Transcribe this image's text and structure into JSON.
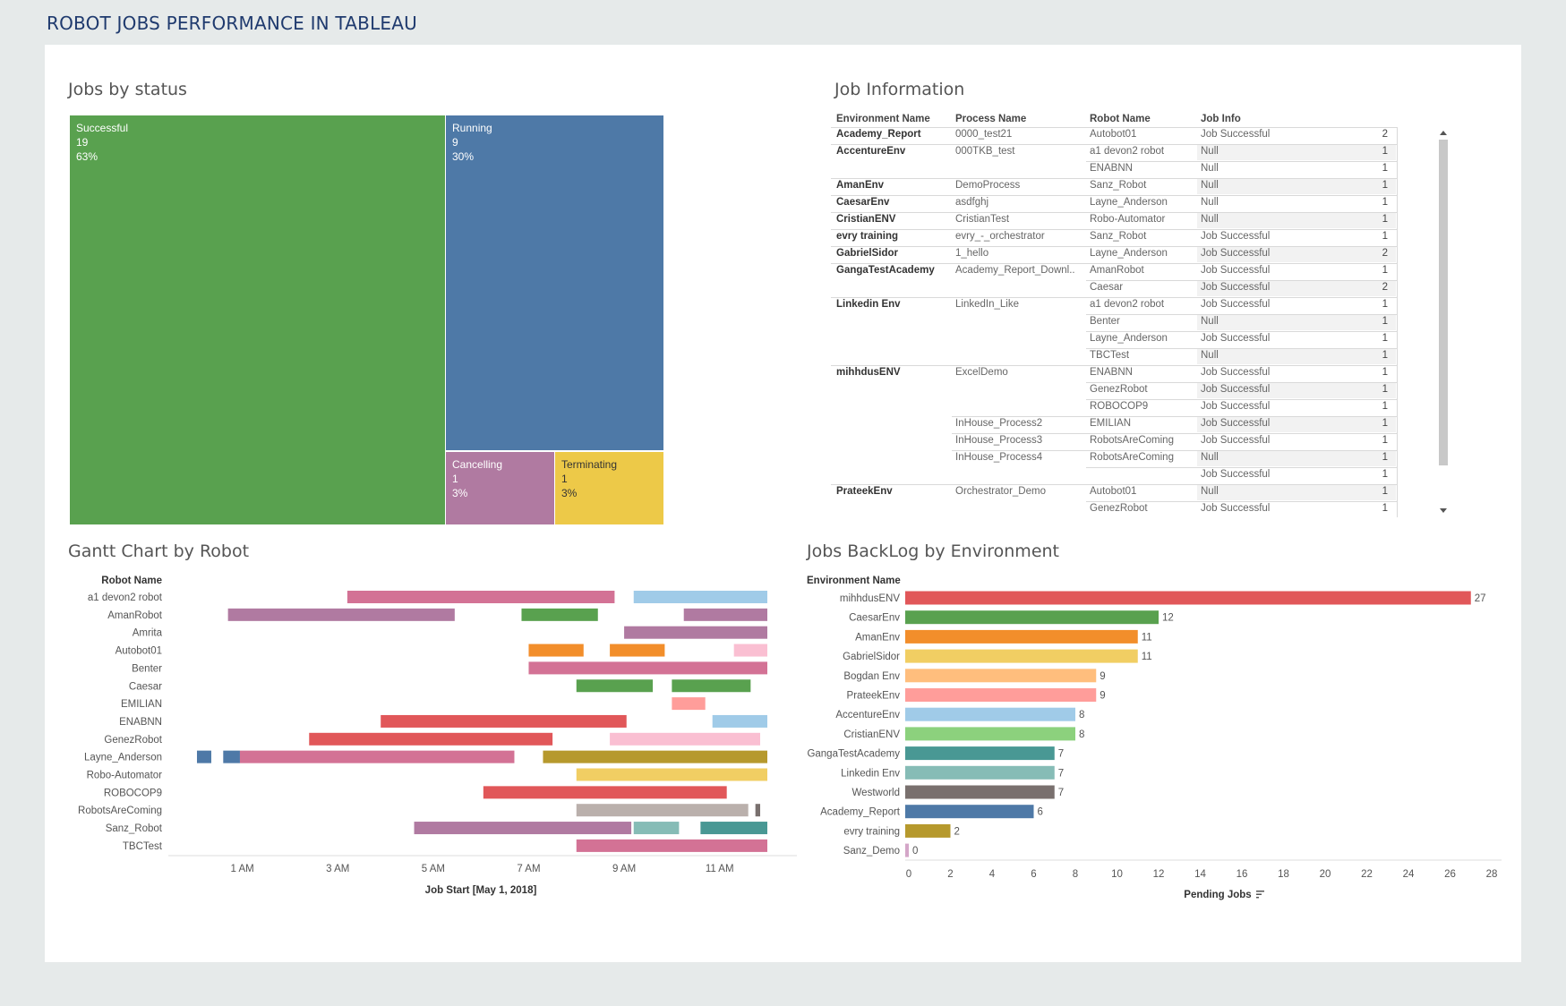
{
  "dashboard_title": "ROBOT JOBS PERFORMANCE IN TABLEAU",
  "sheets": {
    "treemap_title": "Jobs by status",
    "table_title": "Job Information",
    "gantt_title": "Gantt Chart by Robot",
    "backlog_title": "Jobs BackLog by Environment"
  },
  "treemap": [
    {
      "label": "Successful",
      "count": "19",
      "pct": "63%",
      "color": "#59a14f"
    },
    {
      "label": "Running",
      "count": "9",
      "pct": "30%",
      "color": "#4e79a7"
    },
    {
      "label": "Cancelling",
      "count": "1",
      "pct": "3%",
      "color": "#b07aa1"
    },
    {
      "label": "Terminating",
      "count": "1",
      "pct": "3%",
      "color": "#edc948"
    }
  ],
  "job_table": {
    "headers": [
      "Environment Name",
      "Process Name",
      "Robot Name",
      "Job Info"
    ],
    "rows": [
      {
        "env": "Academy_Report",
        "proc": "0000_test21",
        "robot": "Autobot01",
        "info": "Job Successful",
        "n": "2"
      },
      {
        "env": "AccentureEnv",
        "proc": "000TKB_test",
        "robot": "a1 devon2 robot",
        "info": "Null",
        "n": "1"
      },
      {
        "env": "",
        "proc": "",
        "robot": "ENABNN",
        "info": "Null",
        "n": "1"
      },
      {
        "env": "AmanEnv",
        "proc": "DemoProcess",
        "robot": "Sanz_Robot",
        "info": "Null",
        "n": "1"
      },
      {
        "env": "CaesarEnv",
        "proc": "asdfghj",
        "robot": "Layne_Anderson",
        "info": "Null",
        "n": "1"
      },
      {
        "env": "CristianENV",
        "proc": "CristianTest",
        "robot": "Robo-Automator",
        "info": "Null",
        "n": "1"
      },
      {
        "env": "evry training",
        "proc": "evry_-_orchestrator",
        "robot": "Sanz_Robot",
        "info": "Job Successful",
        "n": "1"
      },
      {
        "env": "GabrielSidor",
        "proc": "1_hello",
        "robot": "Layne_Anderson",
        "info": "Job Successful",
        "n": "2"
      },
      {
        "env": "GangaTestAcademy",
        "proc": "Academy_Report_Downl..",
        "robot": "AmanRobot",
        "info": "Job Successful",
        "n": "1"
      },
      {
        "env": "",
        "proc": "",
        "robot": "Caesar",
        "info": "Job Successful",
        "n": "2"
      },
      {
        "env": "Linkedin Env",
        "proc": "LinkedIn_Like",
        "robot": "a1 devon2 robot",
        "info": "Job Successful",
        "n": "1"
      },
      {
        "env": "",
        "proc": "",
        "robot": "Benter",
        "info": "Null",
        "n": "1"
      },
      {
        "env": "",
        "proc": "",
        "robot": "Layne_Anderson",
        "info": "Job Successful",
        "n": "1"
      },
      {
        "env": "",
        "proc": "",
        "robot": "TBCTest",
        "info": "Null",
        "n": "1"
      },
      {
        "env": "mihhdusENV",
        "proc": "ExcelDemo",
        "robot": "ENABNN",
        "info": "Job Successful",
        "n": "1"
      },
      {
        "env": "",
        "proc": "",
        "robot": "GenezRobot",
        "info": "Job Successful",
        "n": "1"
      },
      {
        "env": "",
        "proc": "",
        "robot": "ROBOCOP9",
        "info": "Job Successful",
        "n": "1"
      },
      {
        "env": "",
        "proc": "InHouse_Process2",
        "robot": "EMILIAN",
        "info": "Job Successful",
        "n": "1"
      },
      {
        "env": "",
        "proc": "InHouse_Process3",
        "robot": "RobotsAreComing",
        "info": "Job Successful",
        "n": "1"
      },
      {
        "env": "",
        "proc": "InHouse_Process4",
        "robot": "RobotsAreComing",
        "info": "Null",
        "n": "1"
      },
      {
        "env": "",
        "proc": "",
        "robot": "",
        "info": "Job Successful",
        "n": "1"
      },
      {
        "env": "PrateekEnv",
        "proc": "Orchestrator_Demo",
        "robot": "Autobot01",
        "info": "Null",
        "n": "1"
      },
      {
        "env": "",
        "proc": "",
        "robot": "GenezRobot",
        "info": "Job Successful",
        "n": "1"
      }
    ]
  },
  "gantt": {
    "row_header": "Robot Name",
    "xlabel": "Job Start [May 1, 2018]",
    "ticks": [
      "1 AM",
      "3 AM",
      "5 AM",
      "7 AM",
      "9 AM",
      "11 AM"
    ],
    "tick_hours": [
      1,
      3,
      5,
      7,
      9,
      11
    ],
    "x_range_hours": [
      -0.55,
      12.0
    ],
    "robots": [
      "a1 devon2 robot",
      "AmanRobot",
      "Amrita",
      "Autobot01",
      "Benter",
      "Caesar",
      "EMILIAN",
      "ENABNN",
      "GenezRobot",
      "Layne_Anderson",
      "Robo-Automator",
      "ROBOCOP9",
      "RobotsAreComing",
      "Sanz_Robot",
      "TBCTest"
    ],
    "bars": [
      {
        "row": 0,
        "start": 3.2,
        "end": 8.8,
        "color": "#d37295"
      },
      {
        "row": 0,
        "start": 9.2,
        "end": 12.0,
        "color": "#a0cbe8"
      },
      {
        "row": 1,
        "start": 0.7,
        "end": 5.45,
        "color": "#b07aa1"
      },
      {
        "row": 1,
        "start": 6.85,
        "end": 8.45,
        "color": "#59a14f"
      },
      {
        "row": 1,
        "start": 10.25,
        "end": 12.0,
        "color": "#b07aa1"
      },
      {
        "row": 2,
        "start": 9.0,
        "end": 12.0,
        "color": "#b07aa1"
      },
      {
        "row": 3,
        "start": 7.0,
        "end": 8.15,
        "color": "#f28e2b"
      },
      {
        "row": 3,
        "start": 8.7,
        "end": 9.85,
        "color": "#f28e2b"
      },
      {
        "row": 3,
        "start": 11.3,
        "end": 12.0,
        "color": "#fabfd2"
      },
      {
        "row": 4,
        "start": 7.0,
        "end": 12.0,
        "color": "#d37295"
      },
      {
        "row": 5,
        "start": 8.0,
        "end": 9.6,
        "color": "#59a14f"
      },
      {
        "row": 5,
        "start": 10.0,
        "end": 11.65,
        "color": "#59a14f"
      },
      {
        "row": 6,
        "start": 10.0,
        "end": 10.7,
        "color": "#ff9d9a"
      },
      {
        "row": 7,
        "start": 3.9,
        "end": 9.05,
        "color": "#e15759"
      },
      {
        "row": 7,
        "start": 10.85,
        "end": 12.0,
        "color": "#a0cbe8"
      },
      {
        "row": 8,
        "start": 2.4,
        "end": 7.5,
        "color": "#e15759"
      },
      {
        "row": 8,
        "start": 8.7,
        "end": 11.85,
        "color": "#fabfd2"
      },
      {
        "row": 9,
        "start": 0.05,
        "end": 0.35,
        "color": "#4e79a7"
      },
      {
        "row": 9,
        "start": 0.6,
        "end": 0.95,
        "color": "#4e79a7"
      },
      {
        "row": 9,
        "start": 0.95,
        "end": 6.7,
        "color": "#d37295"
      },
      {
        "row": 9,
        "start": 7.3,
        "end": 12.0,
        "color": "#b6992d"
      },
      {
        "row": 10,
        "start": 8.0,
        "end": 12.0,
        "color": "#f1ce63"
      },
      {
        "row": 11,
        "start": 6.05,
        "end": 11.15,
        "color": "#e15759"
      },
      {
        "row": 12,
        "start": 8.0,
        "end": 11.6,
        "color": "#bab0ac"
      },
      {
        "row": 12,
        "start": 11.75,
        "end": 11.85,
        "color": "#79706e"
      },
      {
        "row": 13,
        "start": 4.6,
        "end": 9.15,
        "color": "#b07aa1"
      },
      {
        "row": 13,
        "start": 9.2,
        "end": 10.15,
        "color": "#86bcb6"
      },
      {
        "row": 13,
        "start": 10.6,
        "end": 12.0,
        "color": "#499894"
      },
      {
        "row": 14,
        "start": 8.0,
        "end": 12.0,
        "color": "#d37295"
      }
    ]
  },
  "chart_data": {
    "type": "bar",
    "orientation": "horizontal",
    "ylabel": "Environment Name",
    "xlabel": "Pending Jobs",
    "xlim": [
      0,
      28
    ],
    "ticks": [
      "0",
      "2",
      "4",
      "6",
      "8",
      "10",
      "12",
      "14",
      "16",
      "18",
      "20",
      "22",
      "24",
      "26",
      "28"
    ],
    "categories": [
      "mihhdusENV",
      "CaesarEnv",
      "AmanEnv",
      "GabrielSidor",
      "Bogdan Env",
      "PrateekEnv",
      "AccentureEnv",
      "CristianENV",
      "GangaTestAcademy",
      "Linkedin Env",
      "Westworld",
      "Academy_Report",
      "evry training",
      "Sanz_Demo"
    ],
    "values": [
      27,
      12,
      11,
      11,
      9,
      9,
      8,
      8,
      7,
      7,
      7,
      6,
      2,
      0
    ],
    "colors": [
      "#e15759",
      "#59a14f",
      "#f28e2b",
      "#f1ce63",
      "#ffbe7d",
      "#ff9d9a",
      "#a0cbe8",
      "#8cd17d",
      "#499894",
      "#86bcb6",
      "#79706e",
      "#4e79a7",
      "#b6992d",
      "#d4a6c8"
    ],
    "grid": false
  }
}
